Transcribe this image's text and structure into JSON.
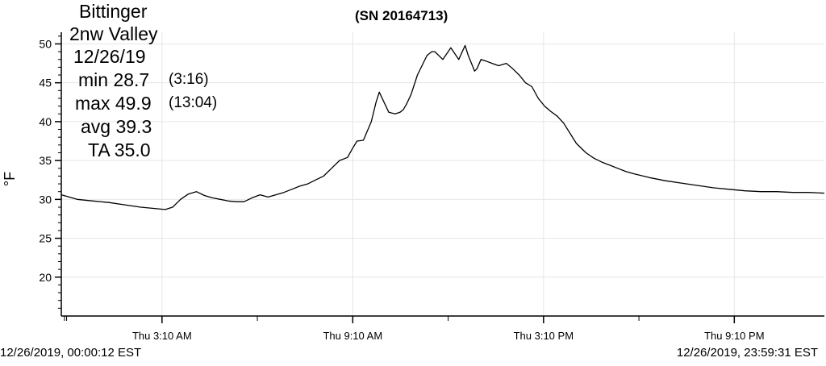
{
  "info": {
    "station_line1": "Bittinger",
    "station_line2": "2nw Valley",
    "date": "12/26/19",
    "min_label": "min 28.7",
    "min_time": "(3:16)",
    "max_label": "max 49.9",
    "max_time": "(13:04)",
    "avg_label": "avg 39.3",
    "ta_label": "TA 35.0"
  },
  "footer": {
    "start": "12/26/2019, 00:00:12 EST",
    "end": "12/26/2019, 23:59:31 EST"
  },
  "colors": {
    "line": "#000000",
    "grid": "#e6e6e6",
    "axis": "#000000"
  },
  "chart_data": {
    "type": "line",
    "title": "(SN 20164713)",
    "ylabel": "°F",
    "xlabel": "",
    "ylim": [
      15,
      51.5
    ],
    "yticks": [
      20,
      25,
      30,
      35,
      40,
      45,
      50
    ],
    "xlim": [
      0,
      24
    ],
    "xticks": [
      {
        "x": 3.1667,
        "label": "Thu 3:10 AM"
      },
      {
        "x": 9.1667,
        "label": "Thu 9:10 AM"
      },
      {
        "x": 15.1667,
        "label": "Thu 3:10 PM"
      },
      {
        "x": 21.1667,
        "label": "Thu 9:10 PM"
      }
    ],
    "grid": true,
    "series": [
      {
        "x": [
          0,
          0.5,
          1,
          1.5,
          2,
          2.5,
          3,
          3.27,
          3.5,
          3.75,
          4,
          4.25,
          4.5,
          4.75,
          5,
          5.25,
          5.5,
          5.75,
          6,
          6.25,
          6.5,
          6.75,
          7,
          7.25,
          7.5,
          7.75,
          8,
          8.25,
          8.5,
          8.75,
          9,
          9.15,
          9.3,
          9.5,
          9.75,
          9.9,
          10,
          10.3,
          10.5,
          10.65,
          10.75,
          10.85,
          11,
          11.2,
          11.5,
          11.65,
          11.75,
          12,
          12.25,
          12.5,
          12.7,
          12.8,
          12.9,
          13,
          13.07,
          13.2,
          13.35,
          13.55,
          13.75,
          14,
          14.2,
          14.4,
          14.6,
          14.8,
          15,
          15.2,
          15.4,
          15.6,
          15.8,
          16,
          16.2,
          16.5,
          16.75,
          17,
          17.25,
          17.5,
          17.75,
          18,
          18.5,
          19,
          19.5,
          20,
          20.5,
          21,
          21.5,
          22,
          22.5,
          23,
          23.5,
          24
        ],
        "y": [
          30.6,
          30.0,
          29.8,
          29.6,
          29.3,
          29.0,
          28.8,
          28.7,
          29.0,
          30.0,
          30.7,
          31.0,
          30.5,
          30.2,
          30.0,
          29.8,
          29.7,
          29.7,
          30.2,
          30.6,
          30.3,
          30.6,
          30.9,
          31.3,
          31.7,
          32.0,
          32.5,
          33.0,
          34.0,
          35.0,
          35.4,
          36.5,
          37.5,
          37.6,
          40.0,
          42.5,
          43.8,
          41.2,
          41.0,
          41.2,
          41.5,
          42.2,
          43.5,
          46.0,
          48.5,
          49.0,
          49.0,
          48.0,
          49.5,
          48.0,
          49.8,
          48.5,
          47.5,
          46.5,
          46.8,
          48.0,
          47.8,
          47.5,
          47.2,
          47.5,
          46.8,
          46.0,
          45.0,
          44.5,
          43.0,
          42.0,
          41.3,
          40.7,
          39.8,
          38.5,
          37.2,
          36.0,
          35.3,
          34.8,
          34.4,
          34.0,
          33.6,
          33.3,
          32.8,
          32.4,
          32.1,
          31.8,
          31.5,
          31.3,
          31.1,
          31.0,
          31.0,
          30.9,
          30.9,
          30.8
        ]
      }
    ]
  }
}
